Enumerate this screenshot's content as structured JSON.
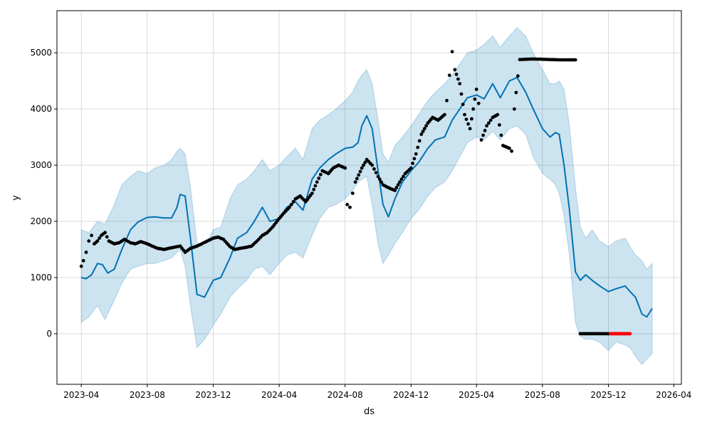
{
  "chart_data": {
    "type": "line",
    "xlabel": "ds",
    "ylabel": "y",
    "xlim": [
      "2023-02-15",
      "2026-04-15"
    ],
    "ylim": [
      -900,
      5750
    ],
    "grid": true,
    "x_ticks": [
      "2023-04",
      "2023-08",
      "2023-12",
      "2024-04",
      "2024-08",
      "2024-12",
      "2025-04",
      "2025-08",
      "2025-12",
      "2026-04"
    ],
    "y_ticks": [
      0,
      1000,
      2000,
      3000,
      4000,
      5000
    ],
    "colors": {
      "forecast": "#0072b2",
      "interval": "#0072b2",
      "history": "#000000",
      "test": "#ff0000",
      "grid": "#d9d9d9"
    },
    "series": [
      {
        "kind": "forecast",
        "x": [
          "2023-04-01",
          "2023-04-10",
          "2023-04-20",
          "2023-05-01",
          "2023-05-10",
          "2023-05-20",
          "2023-06-01",
          "2023-06-15",
          "2023-07-01",
          "2023-07-15",
          "2023-08-01",
          "2023-08-15",
          "2023-09-01",
          "2023-09-15",
          "2023-09-25",
          "2023-10-01",
          "2023-10-10",
          "2023-10-20",
          "2023-11-01",
          "2023-11-15",
          "2023-12-01",
          "2023-12-15",
          "2024-01-01",
          "2024-01-15",
          "2024-02-01",
          "2024-02-15",
          "2024-03-01",
          "2024-03-15",
          "2024-04-01",
          "2024-04-15",
          "2024-05-01",
          "2024-05-15",
          "2024-06-01",
          "2024-06-15",
          "2024-07-01",
          "2024-07-15",
          "2024-08-01",
          "2024-08-15",
          "2024-08-25",
          "2024-09-01",
          "2024-09-10",
          "2024-09-20",
          "2024-10-01",
          "2024-10-10",
          "2024-10-20",
          "2024-11-01",
          "2024-11-15",
          "2024-12-01",
          "2024-12-15",
          "2025-01-01",
          "2025-01-15",
          "2025-02-01",
          "2025-02-15",
          "2025-03-01",
          "2025-03-15",
          "2025-04-01",
          "2025-04-15",
          "2025-05-01",
          "2025-05-15",
          "2025-06-01",
          "2025-06-15",
          "2025-07-01",
          "2025-07-15",
          "2025-08-01",
          "2025-08-15",
          "2025-08-25",
          "2025-09-01",
          "2025-09-10",
          "2025-09-20",
          "2025-10-01",
          "2025-10-10",
          "2025-10-20",
          "2025-11-01",
          "2025-11-15",
          "2025-12-01",
          "2025-12-15",
          "2026-01-01",
          "2026-01-10",
          "2026-01-20",
          "2026-02-01",
          "2026-02-10",
          "2026-02-20"
        ],
        "y": [
          1000,
          980,
          1050,
          1250,
          1230,
          1080,
          1150,
          1500,
          1850,
          1990,
          2070,
          2080,
          2060,
          2060,
          2250,
          2480,
          2450,
          1700,
          700,
          650,
          950,
          1000,
          1350,
          1700,
          1800,
          2000,
          2250,
          2000,
          2050,
          2250,
          2350,
          2200,
          2750,
          2950,
          3100,
          3200,
          3300,
          3320,
          3400,
          3700,
          3880,
          3650,
          2900,
          2300,
          2080,
          2400,
          2700,
          2900,
          3050,
          3300,
          3450,
          3500,
          3800,
          4000,
          4200,
          4250,
          4180,
          4450,
          4200,
          4500,
          4560,
          4300,
          4000,
          3650,
          3500,
          3580,
          3550,
          3000,
          2200,
          1100,
          950,
          1050,
          950,
          850,
          750,
          800,
          850,
          750,
          650,
          350,
          300,
          450
        ]
      },
      {
        "kind": "interval-upper",
        "x": [
          "2023-04-01",
          "2023-04-15",
          "2023-05-01",
          "2023-05-15",
          "2023-06-01",
          "2023-06-15",
          "2023-07-01",
          "2023-07-15",
          "2023-08-01",
          "2023-08-15",
          "2023-09-01",
          "2023-09-15",
          "2023-09-25",
          "2023-10-01",
          "2023-10-10",
          "2023-10-20",
          "2023-11-01",
          "2023-11-15",
          "2023-12-01",
          "2023-12-15",
          "2024-01-01",
          "2024-01-15",
          "2024-02-01",
          "2024-02-15",
          "2024-03-01",
          "2024-03-15",
          "2024-04-01",
          "2024-04-15",
          "2024-05-01",
          "2024-05-15",
          "2024-06-01",
          "2024-06-15",
          "2024-07-01",
          "2024-07-15",
          "2024-08-01",
          "2024-08-15",
          "2024-08-25",
          "2024-09-01",
          "2024-09-10",
          "2024-09-20",
          "2024-10-01",
          "2024-10-10",
          "2024-10-20",
          "2024-11-01",
          "2024-11-15",
          "2024-12-01",
          "2024-12-15",
          "2025-01-01",
          "2025-01-15",
          "2025-02-01",
          "2025-02-15",
          "2025-03-01",
          "2025-03-15",
          "2025-04-01",
          "2025-04-15",
          "2025-05-01",
          "2025-05-15",
          "2025-06-01",
          "2025-06-15",
          "2025-07-01",
          "2025-07-15",
          "2025-08-01",
          "2025-08-15",
          "2025-08-25",
          "2025-09-01",
          "2025-09-10",
          "2025-09-20",
          "2025-10-01",
          "2025-10-10",
          "2025-10-20",
          "2025-11-01",
          "2025-11-15",
          "2025-12-01",
          "2025-12-15",
          "2026-01-01",
          "2026-01-10",
          "2026-01-20",
          "2026-02-01",
          "2026-02-10",
          "2026-02-20"
        ],
        "y": [
          1850,
          1800,
          2000,
          1950,
          2300,
          2650,
          2800,
          2900,
          2850,
          2950,
          3000,
          3100,
          3250,
          3300,
          3200,
          2600,
          1600,
          1550,
          1850,
          1900,
          2400,
          2650,
          2750,
          2900,
          3100,
          2900,
          3000,
          3150,
          3300,
          3100,
          3650,
          3800,
          3900,
          4000,
          4150,
          4300,
          4500,
          4600,
          4700,
          4450,
          3800,
          3200,
          3050,
          3350,
          3500,
          3700,
          3900,
          4150,
          4300,
          4450,
          4600,
          4800,
          5000,
          5050,
          5150,
          5300,
          5100,
          5300,
          5450,
          5300,
          5000,
          4700,
          4450,
          4450,
          4500,
          4350,
          3700,
          2600,
          1900,
          1700,
          1850,
          1650,
          1550,
          1650,
          1700,
          1550,
          1400,
          1300,
          1150,
          1250
        ]
      },
      {
        "kind": "interval-lower",
        "x": [
          "2023-04-01",
          "2023-04-15",
          "2023-05-01",
          "2023-05-15",
          "2023-06-01",
          "2023-06-15",
          "2023-07-01",
          "2023-07-15",
          "2023-08-01",
          "2023-08-15",
          "2023-09-01",
          "2023-09-15",
          "2023-09-25",
          "2023-10-01",
          "2023-10-10",
          "2023-10-20",
          "2023-11-01",
          "2023-11-15",
          "2023-12-01",
          "2023-12-15",
          "2024-01-01",
          "2024-01-15",
          "2024-02-01",
          "2024-02-15",
          "2024-03-01",
          "2024-03-15",
          "2024-04-01",
          "2024-04-15",
          "2024-05-01",
          "2024-05-15",
          "2024-06-01",
          "2024-06-15",
          "2024-07-01",
          "2024-07-15",
          "2024-08-01",
          "2024-08-15",
          "2024-08-25",
          "2024-09-01",
          "2024-09-10",
          "2024-09-20",
          "2024-10-01",
          "2024-10-10",
          "2024-10-20",
          "2024-11-01",
          "2024-11-15",
          "2024-12-01",
          "2024-12-15",
          "2025-01-01",
          "2025-01-15",
          "2025-02-01",
          "2025-02-15",
          "2025-03-01",
          "2025-03-15",
          "2025-04-01",
          "2025-04-15",
          "2025-05-01",
          "2025-05-15",
          "2025-06-01",
          "2025-06-15",
          "2025-07-01",
          "2025-07-15",
          "2025-08-01",
          "2025-08-15",
          "2025-08-25",
          "2025-09-01",
          "2025-09-10",
          "2025-09-20",
          "2025-10-01",
          "2025-10-10",
          "2025-10-20",
          "2025-11-01",
          "2025-11-15",
          "2025-12-01",
          "2025-12-15",
          "2026-01-01",
          "2026-01-10",
          "2026-01-20",
          "2026-02-01",
          "2026-02-10",
          "2026-02-20"
        ],
        "y": [
          200,
          300,
          500,
          250,
          600,
          900,
          1150,
          1200,
          1250,
          1250,
          1300,
          1350,
          1450,
          1500,
          1200,
          500,
          -250,
          -100,
          150,
          350,
          650,
          800,
          950,
          1150,
          1200,
          1050,
          1250,
          1400,
          1450,
          1350,
          1750,
          2050,
          2250,
          2300,
          2400,
          2550,
          2700,
          2750,
          2800,
          2300,
          1600,
          1250,
          1400,
          1600,
          1800,
          2050,
          2200,
          2450,
          2600,
          2700,
          2900,
          3150,
          3400,
          3500,
          3450,
          3600,
          3450,
          3650,
          3700,
          3550,
          3150,
          2850,
          2750,
          2650,
          2500,
          2100,
          1400,
          200,
          -50,
          -100,
          -100,
          -150,
          -300,
          -150,
          -200,
          -250,
          -400,
          -550,
          -450,
          -350
        ]
      },
      {
        "kind": "history",
        "x": [
          "2023-04-01",
          "2023-04-05",
          "2023-04-10",
          "2023-04-15",
          "2023-04-20",
          "2023-04-25",
          "2023-05-01",
          "2023-05-08",
          "2023-05-15",
          "2023-05-22",
          "2023-06-01",
          "2023-06-10",
          "2023-06-20",
          "2023-07-01",
          "2023-07-10",
          "2023-07-20",
          "2023-08-01",
          "2023-08-10",
          "2023-08-20",
          "2023-09-01",
          "2023-09-10",
          "2023-09-20",
          "2023-10-01",
          "2023-10-10",
          "2023-10-20",
          "2023-11-01",
          "2023-11-10",
          "2023-11-20",
          "2023-12-01",
          "2023-12-10",
          "2023-12-20",
          "2024-01-01",
          "2024-01-10",
          "2024-01-20",
          "2024-02-01",
          "2024-02-10",
          "2024-02-20",
          "2024-03-01",
          "2024-03-10",
          "2024-03-20",
          "2024-04-01",
          "2024-04-10",
          "2024-04-20",
          "2024-05-01",
          "2024-05-10",
          "2024-05-20",
          "2024-06-01",
          "2024-06-10",
          "2024-06-20",
          "2024-07-01",
          "2024-07-10",
          "2024-07-20",
          "2024-08-01",
          "2024-08-05",
          "2024-08-10",
          "2024-08-15",
          "2024-08-20",
          "2024-09-01",
          "2024-09-10",
          "2024-09-20",
          "2024-10-01",
          "2024-10-10",
          "2024-10-20",
          "2024-11-01",
          "2024-11-10",
          "2024-11-20",
          "2024-12-01",
          "2024-12-10",
          "2024-12-20",
          "2025-01-01",
          "2025-01-10",
          "2025-01-20",
          "2025-02-01",
          "2025-02-05",
          "2025-02-10",
          "2025-02-15",
          "2025-02-20",
          "2025-03-01",
          "2025-03-10",
          "2025-03-20",
          "2025-04-01",
          "2025-04-05",
          "2025-04-10",
          "2025-04-20",
          "2025-05-01",
          "2025-05-10",
          "2025-05-20",
          "2025-06-01",
          "2025-06-05",
          "2025-06-10",
          "2025-06-20",
          "2025-07-01",
          "2025-07-15",
          "2025-08-01",
          "2025-08-15",
          "2025-09-01",
          "2025-09-15",
          "2025-10-01",
          "2025-10-10",
          "2025-10-20",
          "2025-11-01",
          "2025-11-10",
          "2025-11-20",
          "2025-12-01"
        ],
        "y": [
          1200,
          1300,
          1450,
          1650,
          1750,
          1600,
          1650,
          1750,
          1800,
          1650,
          1600,
          1620,
          1680,
          1620,
          1600,
          1640,
          1600,
          1560,
          1520,
          1500,
          1520,
          1540,
          1560,
          1450,
          1520,
          1560,
          1600,
          1650,
          1700,
          1720,
          1680,
          1550,
          1500,
          1520,
          1540,
          1560,
          1650,
          1750,
          1800,
          1900,
          2050,
          2150,
          2250,
          2400,
          2450,
          2350,
          2500,
          2700,
          2900,
          2850,
          2950,
          3000,
          2950,
          2300,
          2250,
          2500,
          2700,
          2950,
          3100,
          3000,
          2800,
          2650,
          2600,
          2550,
          2700,
          2850,
          2950,
          3200,
          3550,
          3750,
          3850,
          3800,
          3900,
          4150,
          4600,
          5020,
          4700,
          4450,
          3900,
          3650,
          4350,
          4100,
          3450,
          3700,
          3850,
          3900,
          3350,
          3300,
          3250,
          4000,
          4880,
          4885,
          4890,
          4885,
          4880,
          4875,
          4875,
          4875,
          0,
          0,
          0,
          0,
          0,
          0
        ]
      },
      {
        "kind": "test",
        "x": [
          "2025-12-05",
          "2025-12-10",
          "2025-12-15",
          "2025-12-20",
          "2025-12-25",
          "2025-12-31",
          "2026-01-05",
          "2026-01-10"
        ],
        "y": [
          0,
          0,
          0,
          0,
          0,
          0,
          0,
          0
        ]
      }
    ]
  }
}
